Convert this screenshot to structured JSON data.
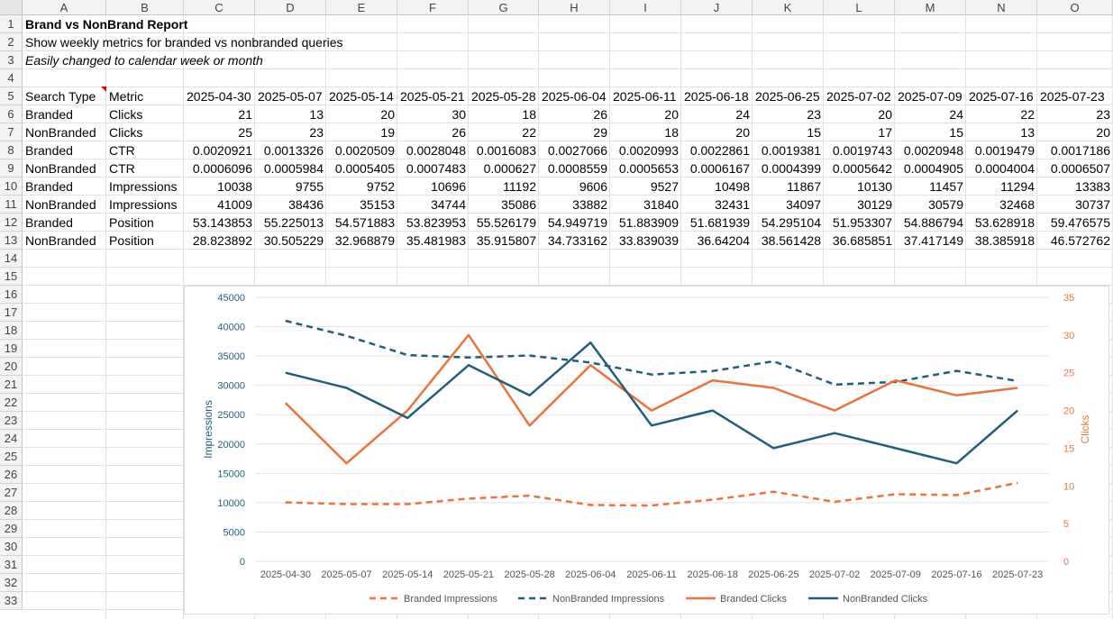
{
  "columns": [
    "A",
    "B",
    "C",
    "D",
    "E",
    "F",
    "G",
    "H",
    "I",
    "J",
    "K",
    "L",
    "M",
    "N",
    "O"
  ],
  "rows": [
    "1",
    "2",
    "3",
    "4",
    "5",
    "6",
    "7",
    "8",
    "9",
    "10",
    "11",
    "12",
    "13",
    "14",
    "15",
    "16",
    "17",
    "18",
    "19",
    "20",
    "21",
    "22",
    "23",
    "24",
    "25",
    "26",
    "27",
    "28",
    "29",
    "30",
    "31",
    "32",
    "33"
  ],
  "report": {
    "title": "Brand vs NonBrand Report",
    "subtitle": "Show weekly metrics for branded vs nonbranded queries",
    "note": "Easily changed to calendar week or month"
  },
  "table": {
    "header": [
      "Search Type",
      "Metric",
      "2025-04-30",
      "2025-05-07",
      "2025-05-14",
      "2025-05-21",
      "2025-05-28",
      "2025-06-04",
      "2025-06-11",
      "2025-06-18",
      "2025-06-25",
      "2025-07-02",
      "2025-07-09",
      "2025-07-16",
      "2025-07-23"
    ],
    "rows": [
      [
        "Branded",
        "Clicks",
        "21",
        "13",
        "20",
        "30",
        "18",
        "26",
        "20",
        "24",
        "23",
        "20",
        "24",
        "22",
        "23"
      ],
      [
        "NonBranded",
        "Clicks",
        "25",
        "23",
        "19",
        "26",
        "22",
        "29",
        "18",
        "20",
        "15",
        "17",
        "15",
        "13",
        "20"
      ],
      [
        "Branded",
        "CTR",
        "0.0020921",
        "0.0013326",
        "0.0020509",
        "0.0028048",
        "0.0016083",
        "0.0027066",
        "0.0020993",
        "0.0022861",
        "0.0019381",
        "0.0019743",
        "0.0020948",
        "0.0019479",
        "0.0017186"
      ],
      [
        "NonBranded",
        "CTR",
        "0.0006096",
        "0.0005984",
        "0.0005405",
        "0.0007483",
        "0.000627",
        "0.0008559",
        "0.0005653",
        "0.0006167",
        "0.0004399",
        "0.0005642",
        "0.0004905",
        "0.0004004",
        "0.0006507"
      ],
      [
        "Branded",
        "Impressions",
        "10038",
        "9755",
        "9752",
        "10696",
        "11192",
        "9606",
        "9527",
        "10498",
        "11867",
        "10130",
        "11457",
        "11294",
        "13383"
      ],
      [
        "NonBranded",
        "Impressions",
        "41009",
        "38436",
        "35153",
        "34744",
        "35086",
        "33882",
        "31840",
        "32431",
        "34097",
        "30129",
        "30579",
        "32468",
        "30737"
      ],
      [
        "Branded",
        "Position",
        "53.143853",
        "55.225013",
        "54.571883",
        "53.823953",
        "55.526179",
        "54.949719",
        "51.883909",
        "51.681939",
        "54.295104",
        "51.953307",
        "54.886794",
        "53.628918",
        "59.476575"
      ],
      [
        "NonBranded",
        "Position",
        "28.823892",
        "30.505229",
        "32.968879",
        "35.481983",
        "35.915807",
        "34.733162",
        "33.839039",
        "36.64204",
        "38.561428",
        "36.685851",
        "37.417149",
        "38.385918",
        "46.572762"
      ]
    ]
  },
  "chart_data": {
    "type": "line",
    "title": "",
    "categories": [
      "2025-04-30",
      "2025-05-07",
      "2025-05-14",
      "2025-05-21",
      "2025-05-28",
      "2025-06-04",
      "2025-06-11",
      "2025-06-18",
      "2025-06-25",
      "2025-07-02",
      "2025-07-09",
      "2025-07-16",
      "2025-07-23"
    ],
    "left_axis": {
      "label": "Impressions",
      "min": 0,
      "max": 45000,
      "step": 5000,
      "ticks": [
        "0",
        "5000",
        "10000",
        "15000",
        "20000",
        "25000",
        "30000",
        "35000",
        "40000",
        "45000"
      ],
      "color": "#1f5f7a"
    },
    "right_axis": {
      "label": "Clicks",
      "min": 0,
      "max": 35,
      "step": 5,
      "ticks": [
        "0",
        "5",
        "10",
        "15",
        "20",
        "25",
        "30",
        "35"
      ],
      "color": "#e07a3f"
    },
    "series": [
      {
        "name": "Branded Impressions",
        "axis": "left",
        "color": "#e8743b",
        "dashed": true,
        "values": [
          10038,
          9755,
          9752,
          10696,
          11192,
          9606,
          9527,
          10498,
          11867,
          10130,
          11457,
          11294,
          13383
        ]
      },
      {
        "name": "NonBranded Impressions",
        "axis": "left",
        "color": "#1f5f7a",
        "dashed": true,
        "values": [
          41009,
          38436,
          35153,
          34744,
          35086,
          33882,
          31840,
          32431,
          34097,
          30129,
          30579,
          32468,
          30737
        ]
      },
      {
        "name": "Branded Clicks",
        "axis": "right",
        "color": "#e8743b",
        "dashed": false,
        "values": [
          21,
          13,
          20,
          30,
          18,
          26,
          20,
          24,
          23,
          20,
          24,
          22,
          23
        ]
      },
      {
        "name": "NonBranded Clicks",
        "axis": "right",
        "color": "#1f5f7a",
        "dashed": false,
        "values": [
          25,
          23,
          19,
          26,
          22,
          29,
          18,
          20,
          15,
          17,
          15,
          13,
          20
        ]
      }
    ],
    "legend": "bottom",
    "grid": true
  }
}
